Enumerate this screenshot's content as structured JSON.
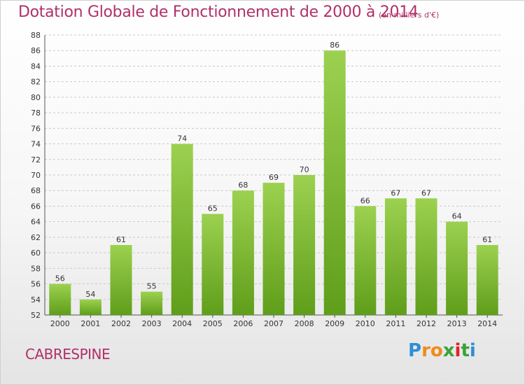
{
  "title": "Dotation Globale de Fonctionnement de 2000 à 2014",
  "unit_note": "(en milliers d'€)",
  "commune": "CABRESPINE",
  "logo": {
    "letters": [
      "P",
      "r",
      "o",
      "x",
      "i",
      "t",
      "i"
    ],
    "colors": [
      "#2d8fd5",
      "#f08a1c",
      "#f08a1c",
      "#3aa23a",
      "#e0242a",
      "#3aa23a",
      "#2d8fd5"
    ]
  },
  "colors": {
    "title": "#b0306a",
    "bar_top": "#9cd150",
    "bar_bottom": "#5f9e1a",
    "grid": "#c8c8c8"
  },
  "chart_data": {
    "type": "bar",
    "categories": [
      "2000",
      "2001",
      "2002",
      "2003",
      "2004",
      "2005",
      "2006",
      "2007",
      "2008",
      "2009",
      "2010",
      "2011",
      "2012",
      "2013",
      "2014"
    ],
    "values": [
      56,
      54,
      61,
      55,
      74,
      65,
      68,
      69,
      70,
      86,
      66,
      67,
      67,
      64,
      61
    ],
    "ylim": [
      52,
      88
    ],
    "yticks": [
      52,
      54,
      56,
      58,
      60,
      62,
      64,
      66,
      68,
      70,
      72,
      74,
      76,
      78,
      80,
      82,
      84,
      86,
      88
    ],
    "grid": "horizontal dashed",
    "data_labels": true
  }
}
